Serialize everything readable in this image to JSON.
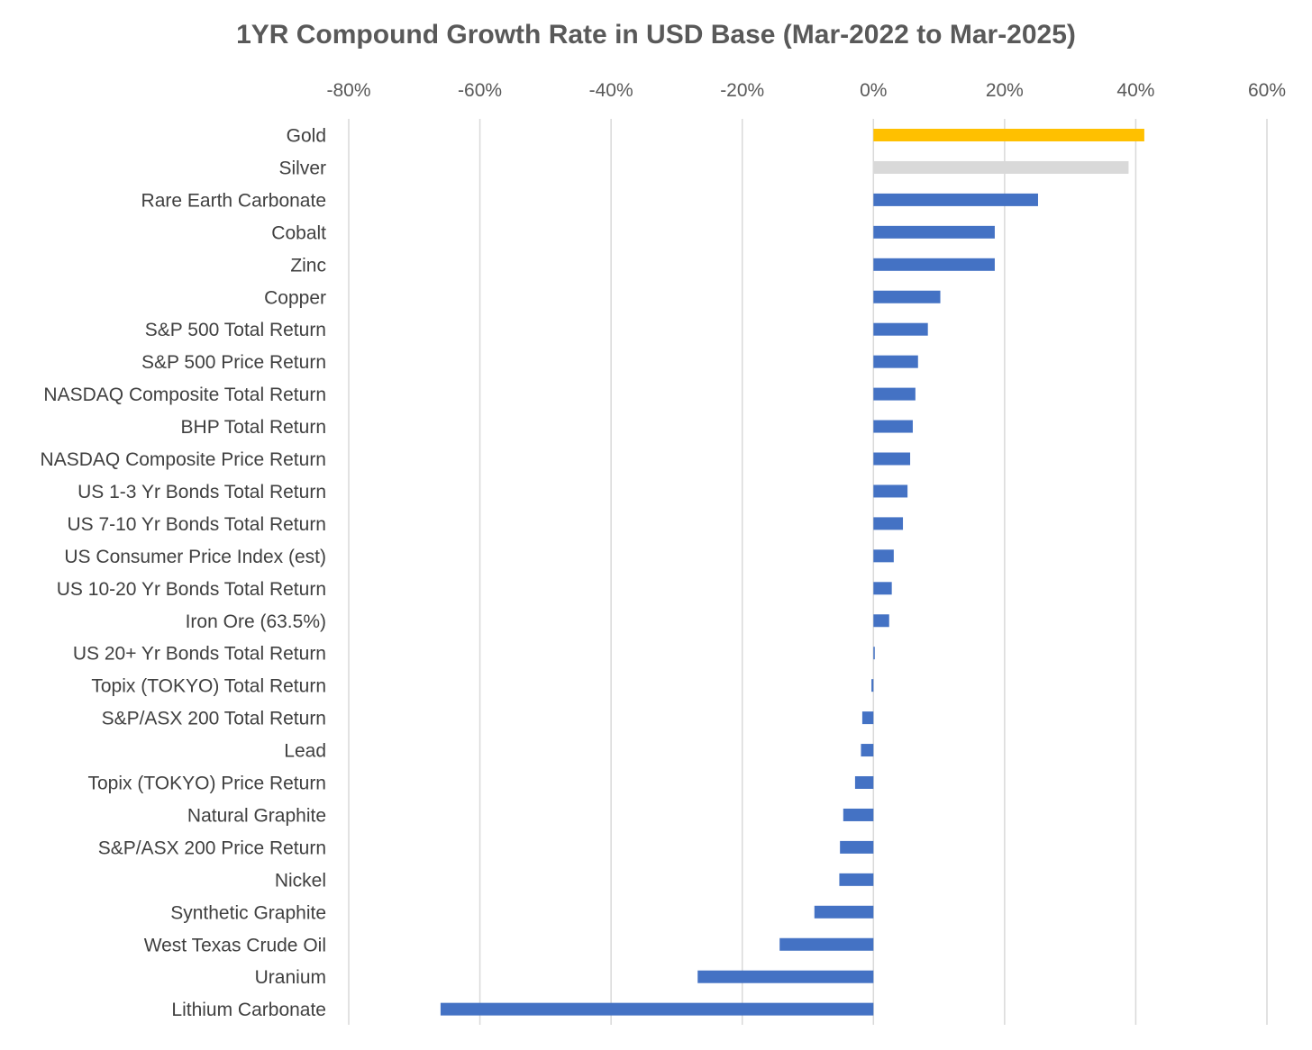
{
  "chart_data": {
    "type": "bar",
    "orientation": "horizontal",
    "title": "1YR Compound Growth Rate in USD Base (Mar-2022 to Mar-2025)",
    "xlabel": "",
    "ylabel": "",
    "xlim": [
      -80,
      60
    ],
    "x_ticks": [
      -80,
      -60,
      -40,
      -20,
      0,
      20,
      40,
      60
    ],
    "x_tick_labels": [
      "-80%",
      "-60%",
      "-40%",
      "-20%",
      "0%",
      "20%",
      "40%",
      "60%"
    ],
    "x_axis_position": "top",
    "grid": true,
    "legend": "none",
    "unit": "%",
    "categories": [
      "Gold",
      "Silver",
      "Rare Earth Carbonate",
      "Cobalt",
      "Zinc",
      "Copper",
      "S&P 500 Total Return",
      "S&P 500 Price Return",
      "NASDAQ Composite Total Return",
      "BHP Total Return",
      "NASDAQ Composite Price Return",
      "US 1-3 Yr Bonds Total Return",
      "US 7-10 Yr Bonds Total Return",
      "US Consumer Price Index (est)",
      "US 10-20 Yr Bonds Total Return",
      "Iron Ore (63.5%)",
      "US 20+ Yr Bonds Total Return",
      "Topix (TOKYO) Total Return",
      "S&P/ASX 200 Total Return",
      "Lead",
      "Topix (TOKYO) Price Return",
      "Natural Graphite",
      "S&P/ASX 200 Price Return",
      "Nickel",
      "Synthetic Graphite",
      "West Texas Crude Oil",
      "Uranium",
      "Lithium Carbonate"
    ],
    "values": [
      41.3,
      38.9,
      25.1,
      18.5,
      18.5,
      10.2,
      8.3,
      6.8,
      6.4,
      6.0,
      5.6,
      5.2,
      4.5,
      3.1,
      2.8,
      2.4,
      0.2,
      -0.3,
      -1.7,
      -1.9,
      -2.8,
      -4.6,
      -5.1,
      -5.2,
      -9.0,
      -14.3,
      -26.8,
      -66.0
    ],
    "colors": {
      "default": "#4472c4",
      "Gold": "#ffc000",
      "Silver": "#d9d9d9"
    }
  }
}
